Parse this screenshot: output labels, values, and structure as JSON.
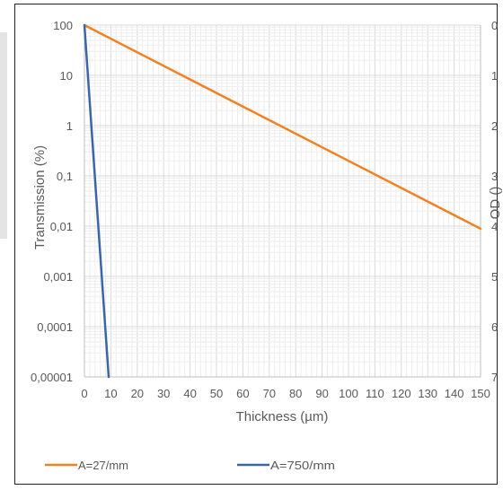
{
  "chart_data": {
    "type": "line",
    "title": "",
    "xlabel": "Thickness (µm)",
    "ylabel": "Transmission (%)",
    "y2label": "OD ()",
    "xlim": [
      0,
      150
    ],
    "ylim": [
      1e-05,
      100
    ],
    "yscale": "log",
    "y2lim": [
      0,
      7
    ],
    "grid": true,
    "legend_position": "bottom",
    "x_ticks": [
      "0",
      "10",
      "20",
      "30",
      "40",
      "50",
      "60",
      "70",
      "80",
      "90",
      "100",
      "110",
      "120",
      "130",
      "140",
      "150"
    ],
    "y_ticks": [
      "100",
      "10",
      "1",
      "0,1",
      "0,01",
      "0,001",
      "0,0001",
      "0,00001"
    ],
    "y2_ticks": [
      "0",
      "1",
      "2",
      "3",
      "4",
      "5",
      "6",
      "7"
    ],
    "series": [
      {
        "name": "A=27/mm",
        "color": "#f28122",
        "x": [
          0,
          150
        ],
        "y": [
          100,
          0.0089
        ]
      },
      {
        "name": "A=750/mm",
        "color": "#3a66a8",
        "x": [
          0,
          9.2
        ],
        "y": [
          100,
          1e-05
        ]
      }
    ]
  }
}
